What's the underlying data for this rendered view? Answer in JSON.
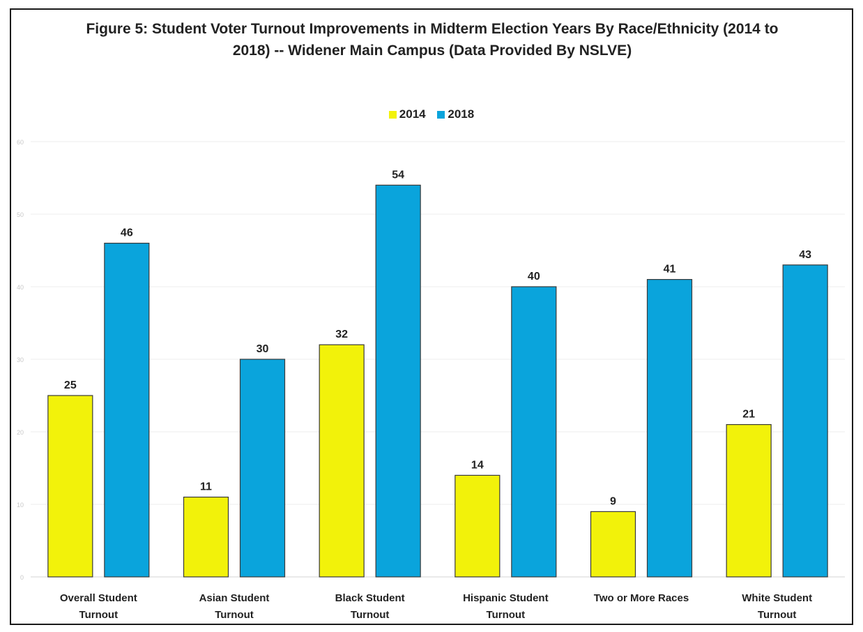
{
  "chart_data": {
    "type": "bar",
    "title": "Figure 5: Student Voter Turnout Improvements in Midterm Election Years By Race/Ethnicity (2014 to 2018) -- Widener Main Campus (Data Provided By NSLVE)",
    "categories": [
      [
        "Overall Student",
        "Turnout"
      ],
      [
        "Asian Student",
        "Turnout"
      ],
      [
        "Black Student",
        "Turnout"
      ],
      [
        "Hispanic Student",
        "Turnout"
      ],
      [
        "Two or More Races"
      ],
      [
        "White Student",
        "Turnout"
      ]
    ],
    "series": [
      {
        "name": "2014",
        "color": "#f2f20a",
        "values": [
          25,
          11,
          32,
          14,
          9,
          21
        ]
      },
      {
        "name": "2018",
        "color": "#0aa4dc",
        "values": [
          46,
          30,
          54,
          40,
          41,
          43
        ]
      }
    ],
    "ylim": [
      0,
      60
    ],
    "yticks": [
      0,
      10,
      20,
      30,
      40,
      50,
      60
    ],
    "xlabel": "",
    "ylabel": "",
    "grid": true,
    "legend_position": "top-center",
    "data_labels": true
  }
}
